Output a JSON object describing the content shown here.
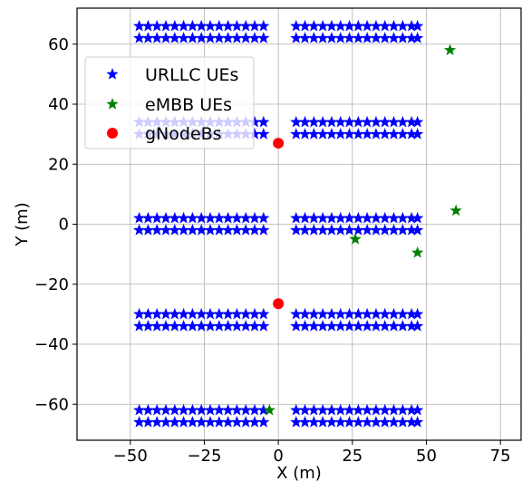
{
  "chart_data": {
    "type": "scatter",
    "xlabel": "X (m)",
    "ylabel": "Y (m)",
    "xlim": [
      -68,
      82
    ],
    "ylim": [
      -72,
      72
    ],
    "xticks": [
      -50,
      -25,
      0,
      25,
      50,
      75
    ],
    "yticks": [
      -60,
      -40,
      -20,
      0,
      20,
      40,
      60
    ],
    "xtick_labels": [
      "−50",
      "−25",
      "0",
      "25",
      "50",
      "75"
    ],
    "ytick_labels": [
      "−60",
      "−40",
      "−20",
      "0",
      "20",
      "40",
      "60"
    ],
    "grid": true,
    "legend_position": "upper-left",
    "series": [
      {
        "name": "URLLC UEs",
        "color": "#0000ff",
        "marker": "star",
        "grid_rows": {
          "left_x": [
            -47,
            -44,
            -41,
            -38,
            -35,
            -32,
            -29,
            -26,
            -23,
            -20,
            -17,
            -14,
            -11,
            -8,
            -5
          ],
          "right_x": [
            6,
            9,
            12,
            15,
            18,
            21,
            24,
            27,
            30,
            33,
            36,
            39,
            42,
            45,
            47
          ],
          "y": [
            66,
            62,
            34,
            30,
            2,
            -2,
            -30,
            -34,
            -62,
            -66
          ]
        }
      },
      {
        "name": "eMBB UEs",
        "color": "#008000",
        "marker": "star",
        "points": [
          [
            58,
            58
          ],
          [
            60,
            4.5
          ],
          [
            26,
            -5
          ],
          [
            47,
            -9.5
          ],
          [
            -3,
            -62
          ]
        ]
      },
      {
        "name": "gNodeBs",
        "color": "#ff0000",
        "marker": "circle",
        "points": [
          [
            0,
            27
          ],
          [
            0,
            -26.5
          ]
        ]
      }
    ]
  }
}
